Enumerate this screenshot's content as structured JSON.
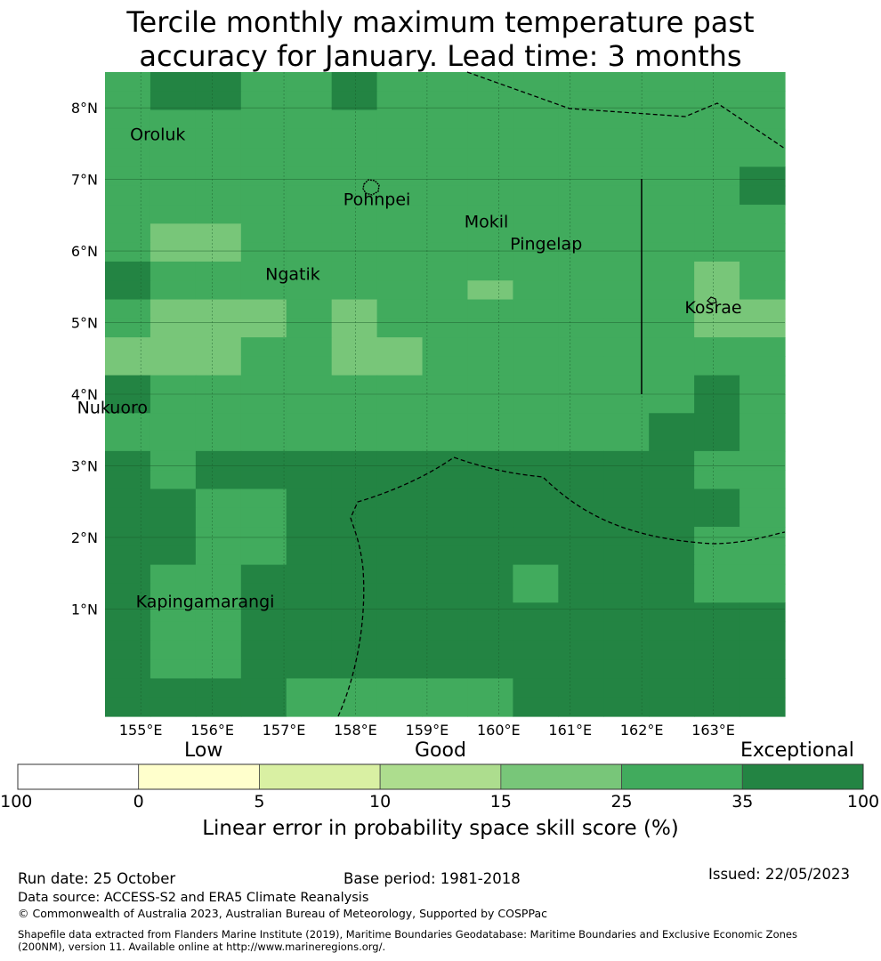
{
  "title": {
    "line1": "Tercile monthly maximum temperature past",
    "line2": "accuracy for January. Lead time: 3 months"
  },
  "map": {
    "lat_ticks": [
      "1°N",
      "2°N",
      "3°N",
      "4°N",
      "5°N",
      "6°N",
      "7°N",
      "8°N"
    ],
    "lon_ticks": [
      "155°E",
      "156°E",
      "157°E",
      "158°E",
      "159°E",
      "160°E",
      "161°E",
      "162°E",
      "163°E"
    ],
    "places": [
      {
        "name": "Oroluk",
        "lon": 154.85,
        "lat": 7.55
      },
      {
        "name": "Pohnpei",
        "lon": 157.83,
        "lat": 6.64
      },
      {
        "name": "Mokil",
        "lon": 159.52,
        "lat": 6.33
      },
      {
        "name": "Pingelap",
        "lon": 160.16,
        "lat": 6.02
      },
      {
        "name": "Ngatik",
        "lon": 156.74,
        "lat": 5.6
      },
      {
        "name": "Kosrae",
        "lon": 162.6,
        "lat": 5.13
      },
      {
        "name": "Nukuoro",
        "lon": 154.11,
        "lat": 3.73
      },
      {
        "name": "Kapingamarangi",
        "lon": 154.93,
        "lat": 1.02
      }
    ],
    "color_key": {
      "1": "#e0f3a0",
      "2": "#a6dc8c",
      "3": "#78c679",
      "4": "#41ab5d",
      "5": "#238443"
    },
    "skill_grid": [
      "455445444444444",
      "455445444444444",
      "444444444444444",
      "444444444444444",
      "444444444444444",
      "444444444444445",
      "444444444444445",
      "444444444444444",
      "433444444444444",
      "433444444444444",
      "544444444444434",
      "544444443444434",
      "433343444444433",
      "433343444444433",
      "333443344444444",
      "333443344444444",
      "544444444444454",
      "544444444444454",
      "444444444444554",
      "444444444444554",
      "545555555555544",
      "545555555555544",
      "554455555555554",
      "554455555555554",
      "554455555555544",
      "554455555555544",
      "544555555455544",
      "544555555455544",
      "544555555555555",
      "544555555555555",
      "544555555555555",
      "544555555555555",
      "555544444555555",
      "555544444555555"
    ],
    "grid_lon_start": 154.5,
    "grid_lon_end": 164.0,
    "grid_lat_top": 8.5,
    "grid_lat_bottom": -0.5
  },
  "categories": {
    "low": "Low",
    "good": "Good",
    "exceptional": "Exceptional"
  },
  "colorbar": {
    "ticks": [
      "-100",
      "0",
      "5",
      "10",
      "15",
      "25",
      "35",
      "100"
    ],
    "colors": [
      "#ffffff",
      "#ffffcc",
      "#d9f0a3",
      "#addd8e",
      "#78c679",
      "#41ab5d",
      "#238443"
    ],
    "label": "Linear error in probability space skill score (%)"
  },
  "footer": {
    "run_date": "Run date: 25 October",
    "base_period": "Base period: 1981-2018",
    "issued": "Issued: 22/05/2023",
    "data_source": "Data source: ACCESS-S2 and ERA5 Climate Reanalysis",
    "copyright": "© Commonwealth of Australia 2023, Australian Bureau of Meteorology, Supported by COSPPac",
    "shapefile_line1": "Shapefile data extracted from Flanders Marine Institute (2019), Maritime Boundaries Geodatabase: Maritime Boundaries and Exclusive Economic Zones",
    "shapefile_line2": "(200NM), version 11. Available online at http://www.marineregions.org/."
  }
}
